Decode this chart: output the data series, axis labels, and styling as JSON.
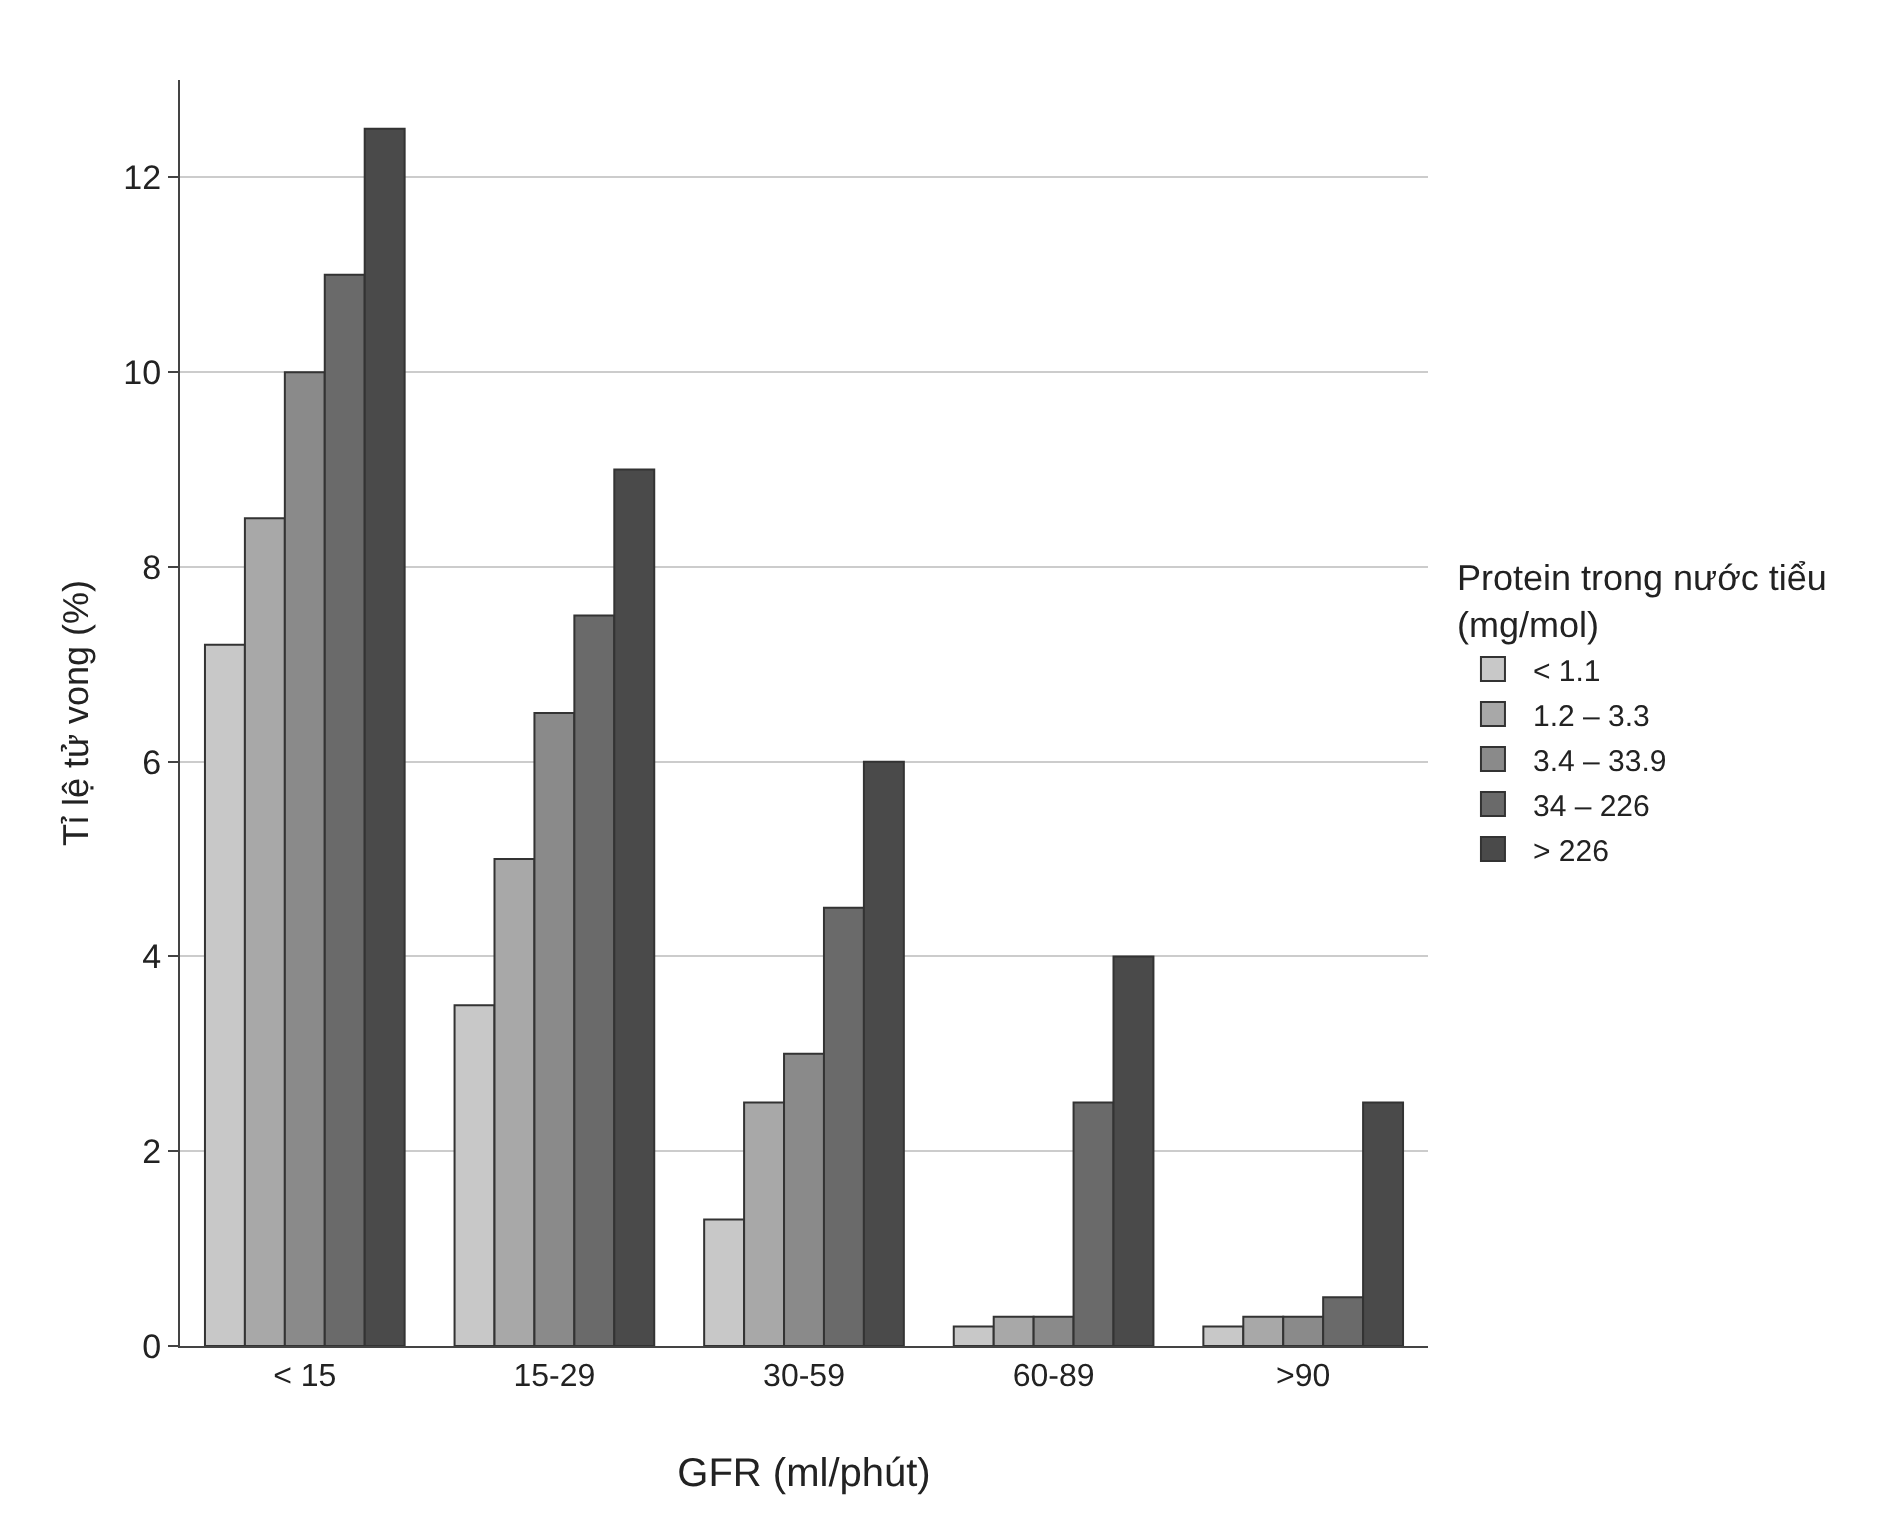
{
  "chart_data": {
    "type": "bar",
    "xlabel": "GFR (ml/phút)",
    "ylabel": "Tỉ lệ tử vong (%)",
    "legend_title": "Protein trong nước tiểu (mg/mol)",
    "categories": [
      "< 15",
      "15-29",
      "30-59",
      "60-89",
      ">90"
    ],
    "series": [
      {
        "name": "< 1.1",
        "color": "#c8c8c8",
        "values": [
          7.2,
          3.5,
          1.3,
          0.2,
          0.2
        ]
      },
      {
        "name": "1.2 – 3.3",
        "color": "#a8a8a8",
        "values": [
          8.5,
          5,
          2.5,
          0.3,
          0.3
        ]
      },
      {
        "name": "3.4 – 33.9",
        "color": "#8a8a8a",
        "values": [
          10,
          6.5,
          3,
          0.3,
          0.3
        ]
      },
      {
        "name": "34 – 226",
        "color": "#6a6a6a",
        "values": [
          11,
          7.5,
          4.5,
          2.5,
          0.5
        ]
      },
      {
        "name": "> 226",
        "color": "#4a4a4a",
        "values": [
          12.5,
          9,
          6,
          4,
          2.5
        ]
      }
    ],
    "ylim": [
      0,
      13
    ],
    "yticks": [
      0,
      2,
      4,
      6,
      8,
      10,
      12
    ],
    "grid": "y",
    "legend": "right"
  }
}
